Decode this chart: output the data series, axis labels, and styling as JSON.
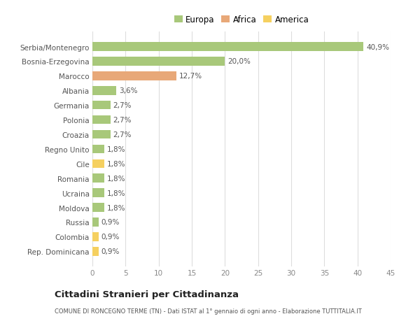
{
  "categories": [
    "Rep. Dominicana",
    "Colombia",
    "Russia",
    "Moldova",
    "Ucraina",
    "Romania",
    "Cile",
    "Regno Unito",
    "Croazia",
    "Polonia",
    "Germania",
    "Albania",
    "Marocco",
    "Bosnia-Erzegovina",
    "Serbia/Montenegro"
  ],
  "values": [
    0.9,
    0.9,
    0.9,
    1.8,
    1.8,
    1.8,
    1.8,
    1.8,
    2.7,
    2.7,
    2.7,
    3.6,
    12.7,
    20.0,
    40.9
  ],
  "labels": [
    "0,9%",
    "0,9%",
    "0,9%",
    "1,8%",
    "1,8%",
    "1,8%",
    "1,8%",
    "1,8%",
    "2,7%",
    "2,7%",
    "2,7%",
    "3,6%",
    "12,7%",
    "20,0%",
    "40,9%"
  ],
  "colors": [
    "#f5d060",
    "#f5d060",
    "#a8c87a",
    "#a8c87a",
    "#a8c87a",
    "#a8c87a",
    "#f5d060",
    "#a8c87a",
    "#a8c87a",
    "#a8c87a",
    "#a8c87a",
    "#a8c87a",
    "#e8a878",
    "#a8c87a",
    "#a8c87a"
  ],
  "legend_labels": [
    "Europa",
    "Africa",
    "America"
  ],
  "legend_colors": [
    "#a8c87a",
    "#e8a878",
    "#f5d060"
  ],
  "xlim": [
    0,
    45
  ],
  "xticks": [
    0,
    5,
    10,
    15,
    20,
    25,
    30,
    35,
    40,
    45
  ],
  "title": "Cittadini Stranieri per Cittadinanza",
  "subtitle": "COMUNE DI RONCEGNO TERME (TN) - Dati ISTAT al 1° gennaio di ogni anno - Elaborazione TUTTITALIA.IT",
  "bg_color": "#ffffff",
  "grid_color": "#dddddd"
}
